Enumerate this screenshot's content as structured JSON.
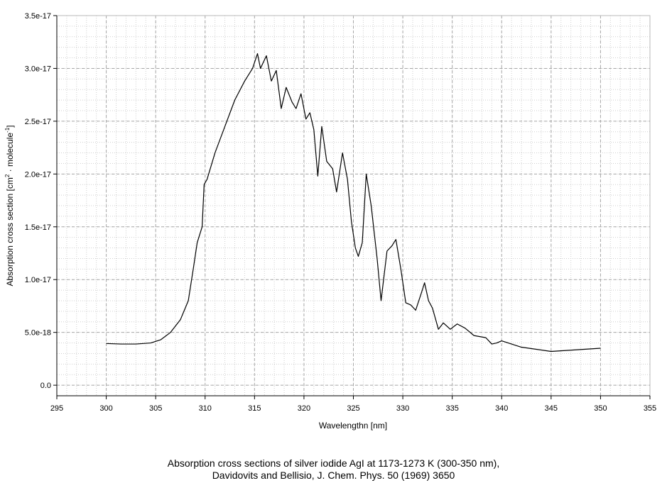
{
  "chart_data": {
    "type": "line",
    "xlabel": "Wavelengthn [nm]",
    "ylabel_main": "Absorption cross section [cm",
    "ylabel_sup1": "2",
    "ylabel_mid": " · molecule",
    "ylabel_sup2": "-1",
    "ylabel_end": "]",
    "xlim": [
      295,
      355
    ],
    "ylim": [
      -1e-18,
      3.5e-17
    ],
    "x_ticks": [
      295,
      300,
      305,
      310,
      315,
      320,
      325,
      330,
      335,
      340,
      345,
      350,
      355
    ],
    "x_tick_labels": [
      "295",
      "300",
      "305",
      "310",
      "315",
      "320",
      "325",
      "330",
      "335",
      "340",
      "345",
      "350",
      "355"
    ],
    "y_ticks": [
      0,
      5e-18,
      1e-17,
      1.5e-17,
      2e-17,
      2.5e-17,
      3e-17,
      3.5e-17
    ],
    "y_tick_labels": [
      "0.0",
      "5.0e-18",
      "1.0e-17",
      "1.5e-17",
      "2.0e-17",
      "2.5e-17",
      "3.0e-17",
      "3.5e-17"
    ],
    "grid": true,
    "minor_grid": true,
    "series": [
      {
        "color": "#000000",
        "points": [
          [
            300,
            3.95e-18
          ],
          [
            301.5,
            3.9e-18
          ],
          [
            303,
            3.9e-18
          ],
          [
            304.5,
            4e-18
          ],
          [
            305.5,
            4.3e-18
          ],
          [
            306.5,
            5e-18
          ],
          [
            307.5,
            6.2e-18
          ],
          [
            308.3,
            8e-18
          ],
          [
            308.8,
            1.1e-17
          ],
          [
            309.2,
            1.35e-17
          ],
          [
            309.7,
            1.5e-17
          ],
          [
            309.9,
            1.9e-17
          ],
          [
            310.2,
            1.95e-17
          ],
          [
            311,
            2.2e-17
          ],
          [
            312,
            2.45e-17
          ],
          [
            313,
            2.7e-17
          ],
          [
            314,
            2.88e-17
          ],
          [
            314.8,
            3e-17
          ],
          [
            315.3,
            3.14e-17
          ],
          [
            315.6,
            3e-17
          ],
          [
            316.2,
            3.12e-17
          ],
          [
            316.7,
            2.88e-17
          ],
          [
            317.2,
            2.98e-17
          ],
          [
            317.7,
            2.62e-17
          ],
          [
            318.2,
            2.82e-17
          ],
          [
            318.8,
            2.68e-17
          ],
          [
            319.2,
            2.62e-17
          ],
          [
            319.7,
            2.76e-17
          ],
          [
            320.2,
            2.52e-17
          ],
          [
            320.6,
            2.58e-17
          ],
          [
            321.0,
            2.42e-17
          ],
          [
            321.4,
            1.98e-17
          ],
          [
            321.8,
            2.45e-17
          ],
          [
            322.3,
            2.12e-17
          ],
          [
            322.9,
            2.05e-17
          ],
          [
            323.3,
            1.83e-17
          ],
          [
            323.9,
            2.2e-17
          ],
          [
            324.4,
            1.95e-17
          ],
          [
            324.8,
            1.55e-17
          ],
          [
            325.2,
            1.3e-17
          ],
          [
            325.5,
            1.22e-17
          ],
          [
            325.9,
            1.35e-17
          ],
          [
            326.3,
            2e-17
          ],
          [
            326.8,
            1.7e-17
          ],
          [
            327.4,
            1.2e-17
          ],
          [
            327.8,
            8e-18
          ],
          [
            328.4,
            1.27e-17
          ],
          [
            328.9,
            1.32e-17
          ],
          [
            329.3,
            1.38e-17
          ],
          [
            329.8,
            1.1e-17
          ],
          [
            330.3,
            7.8e-18
          ],
          [
            330.8,
            7.6e-18
          ],
          [
            331.3,
            7.1e-18
          ],
          [
            331.9,
            8.8e-18
          ],
          [
            332.2,
            9.7e-18
          ],
          [
            332.6,
            8e-18
          ],
          [
            333.0,
            7.3e-18
          ],
          [
            333.6,
            5.3e-18
          ],
          [
            334.1,
            5.9e-18
          ],
          [
            334.8,
            5.3e-18
          ],
          [
            335.5,
            5.8e-18
          ],
          [
            336.3,
            5.4e-18
          ],
          [
            337.2,
            4.7e-18
          ],
          [
            338.4,
            4.5e-18
          ],
          [
            339.0,
            3.9e-18
          ],
          [
            339.5,
            4e-18
          ],
          [
            340.0,
            4.2e-18
          ],
          [
            342.0,
            3.6e-18
          ],
          [
            345.0,
            3.2e-18
          ],
          [
            347.5,
            3.35e-18
          ],
          [
            350.0,
            3.5e-18
          ]
        ]
      }
    ]
  },
  "caption": {
    "line1": "Absorption cross sections of silver iodide AgI at 1173-1273 K (300-350 nm),",
    "line2": "Davidovits and Bellisio, J. Chem. Phys. 50 (1969) 3650"
  }
}
